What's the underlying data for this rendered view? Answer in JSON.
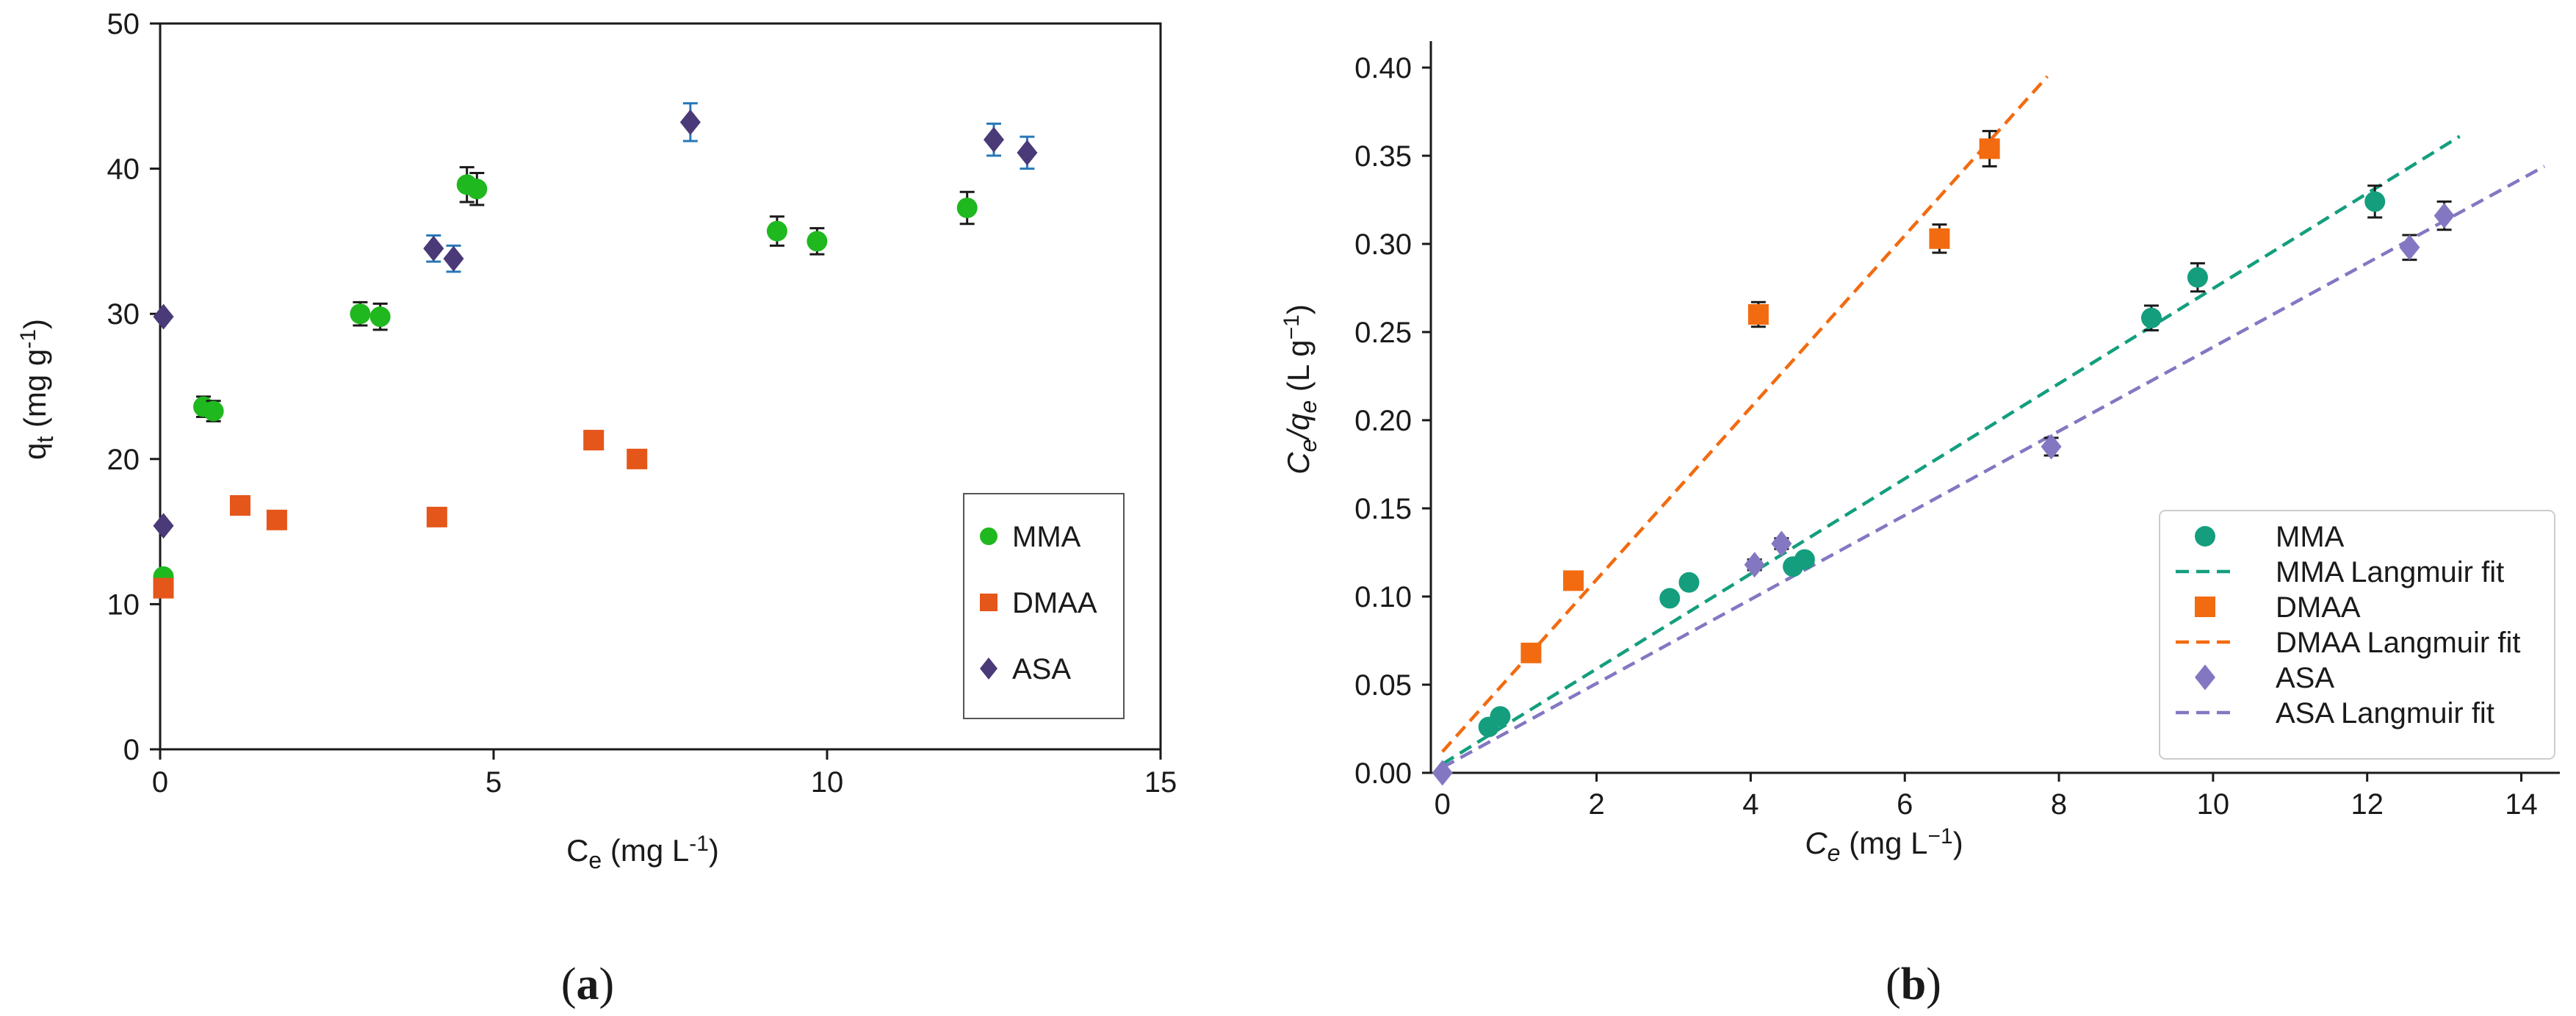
{
  "panels": [
    {
      "id": "a",
      "label_open": "(",
      "label_letter": "a",
      "label_close": ")",
      "xlabel": {
        "main": "C",
        "sub": "e",
        "unit": " (mg L",
        "sup": "-1",
        "close": ")"
      },
      "ylabel": {
        "main": "q",
        "sub": "t",
        "unit": " (mg g",
        "sup": "-1",
        "close": ")"
      },
      "legend_position": "center-right",
      "chart_data": {
        "type": "scatter",
        "title": "",
        "xlim": [
          0,
          15
        ],
        "ylim": [
          0,
          50
        ],
        "xticks": [
          0,
          5,
          10,
          15
        ],
        "yticks": [
          0,
          10,
          20,
          30,
          40,
          50
        ],
        "xtick_labels": [
          "0",
          "5",
          "10",
          "15"
        ],
        "ytick_labels": [
          "0",
          "10",
          "20",
          "30",
          "40",
          "50"
        ],
        "grid": false,
        "series": [
          {
            "name": "MMA",
            "color": "#1fb81f",
            "marker": "circle",
            "errcolor": "#1a1a1a",
            "x": [
              0.05,
              0.65,
              0.8,
              3.0,
              3.3,
              4.6,
              4.75,
              9.25,
              9.85,
              12.1
            ],
            "y": [
              11.9,
              23.6,
              23.3,
              30.0,
              29.8,
              38.9,
              38.6,
              35.7,
              35.0,
              37.3
            ],
            "err": [
              0,
              0.7,
              0.7,
              0.8,
              0.9,
              1.2,
              1.1,
              1.0,
              0.9,
              1.1
            ]
          },
          {
            "name": "DMAA",
            "color": "#e5561a",
            "marker": "square",
            "errcolor": "#1a1a1a",
            "x": [
              0.05,
              1.2,
              1.75,
              4.15,
              6.5,
              7.15
            ],
            "y": [
              11.1,
              16.8,
              15.8,
              16.0,
              21.3,
              20.0
            ],
            "err": [
              0,
              0,
              0,
              0,
              0,
              0
            ]
          },
          {
            "name": "ASA",
            "color": "#4a3a78",
            "marker": "diamond",
            "errcolor": "#2878b8",
            "x": [
              0.05,
              0.05,
              4.1,
              4.4,
              7.95,
              12.5,
              13.0
            ],
            "y": [
              15.4,
              29.8,
              34.5,
              33.8,
              43.2,
              42.0,
              41.1
            ],
            "err": [
              0,
              0,
              0.9,
              0.9,
              1.3,
              1.1,
              1.1
            ]
          }
        ]
      }
    },
    {
      "id": "b",
      "label_open": "(",
      "label_letter": "b",
      "label_close": ")",
      "xlabel": {
        "main": "C",
        "sub": "e",
        "unit": " (mg L",
        "sup": "−1",
        "close": ")"
      },
      "ylabel": {
        "main": "C",
        "sub": "e",
        "slash": "/q",
        "sub2": "e",
        "unit": " (L g",
        "sup": "−1",
        "close": ")"
      },
      "legend_position": "lower-right",
      "chart_data": {
        "type": "scatter",
        "title": "",
        "xlim": [
          -0.15,
          14.5
        ],
        "ylim": [
          0,
          0.415
        ],
        "xticks": [
          0,
          2,
          4,
          6,
          8,
          10,
          12,
          14
        ],
        "yticks": [
          0.0,
          0.05,
          0.1,
          0.15,
          0.2,
          0.25,
          0.3,
          0.35,
          0.4
        ],
        "xtick_labels": [
          "0",
          "2",
          "4",
          "6",
          "8",
          "10",
          "12",
          "14"
        ],
        "ytick_labels": [
          "0.00",
          "0.05",
          "0.10",
          "0.15",
          "0.20",
          "0.25",
          "0.30",
          "0.35",
          "0.40"
        ],
        "grid": false,
        "series": [
          {
            "name": "MMA",
            "color": "#149e7e",
            "marker": "circle",
            "errcolor": "#1a1a1a",
            "x": [
              0.6,
              0.75,
              2.95,
              3.2,
              4.55,
              4.7,
              9.2,
              9.8,
              12.1
            ],
            "y": [
              0.026,
              0.032,
              0.099,
              0.108,
              0.117,
              0.121,
              0.258,
              0.281,
              0.324
            ],
            "err": [
              0.002,
              0.002,
              0.003,
              0.003,
              0.003,
              0.003,
              0.007,
              0.008,
              0.009
            ]
          },
          {
            "name": "MMA Langmuir fit",
            "color": "#149e7e",
            "type": "line",
            "dash": true,
            "x": [
              0,
              13.2
            ],
            "y": [
              0.005,
              0.361
            ]
          },
          {
            "name": "DMAA",
            "color": "#f26b10",
            "marker": "square",
            "errcolor": "#1a1a1a",
            "x": [
              1.15,
              1.7,
              4.1,
              6.45,
              7.1
            ],
            "y": [
              0.068,
              0.109,
              0.26,
              0.303,
              0.354
            ],
            "err": [
              0.003,
              0.003,
              0.007,
              0.008,
              0.01
            ]
          },
          {
            "name": "DMAA Langmuir fit",
            "color": "#f26b10",
            "type": "line",
            "dash": true,
            "x": [
              0,
              7.85
            ],
            "y": [
              0.012,
              0.395
            ]
          },
          {
            "name": "ASA",
            "color": "#8477c2",
            "marker": "diamond",
            "errcolor": "#1a1a1a",
            "x": [
              0.0,
              4.05,
              4.4,
              7.9,
              12.55,
              13.0
            ],
            "y": [
              0.0,
              0.118,
              0.13,
              0.185,
              0.298,
              0.316
            ],
            "err": [
              0.001,
              0.003,
              0.003,
              0.005,
              0.007,
              0.008
            ]
          },
          {
            "name": "ASA Langmuir fit",
            "color": "#8477c2",
            "type": "line",
            "dash": true,
            "x": [
              0,
              14.3
            ],
            "y": [
              0.003,
              0.344
            ]
          }
        ]
      }
    }
  ]
}
